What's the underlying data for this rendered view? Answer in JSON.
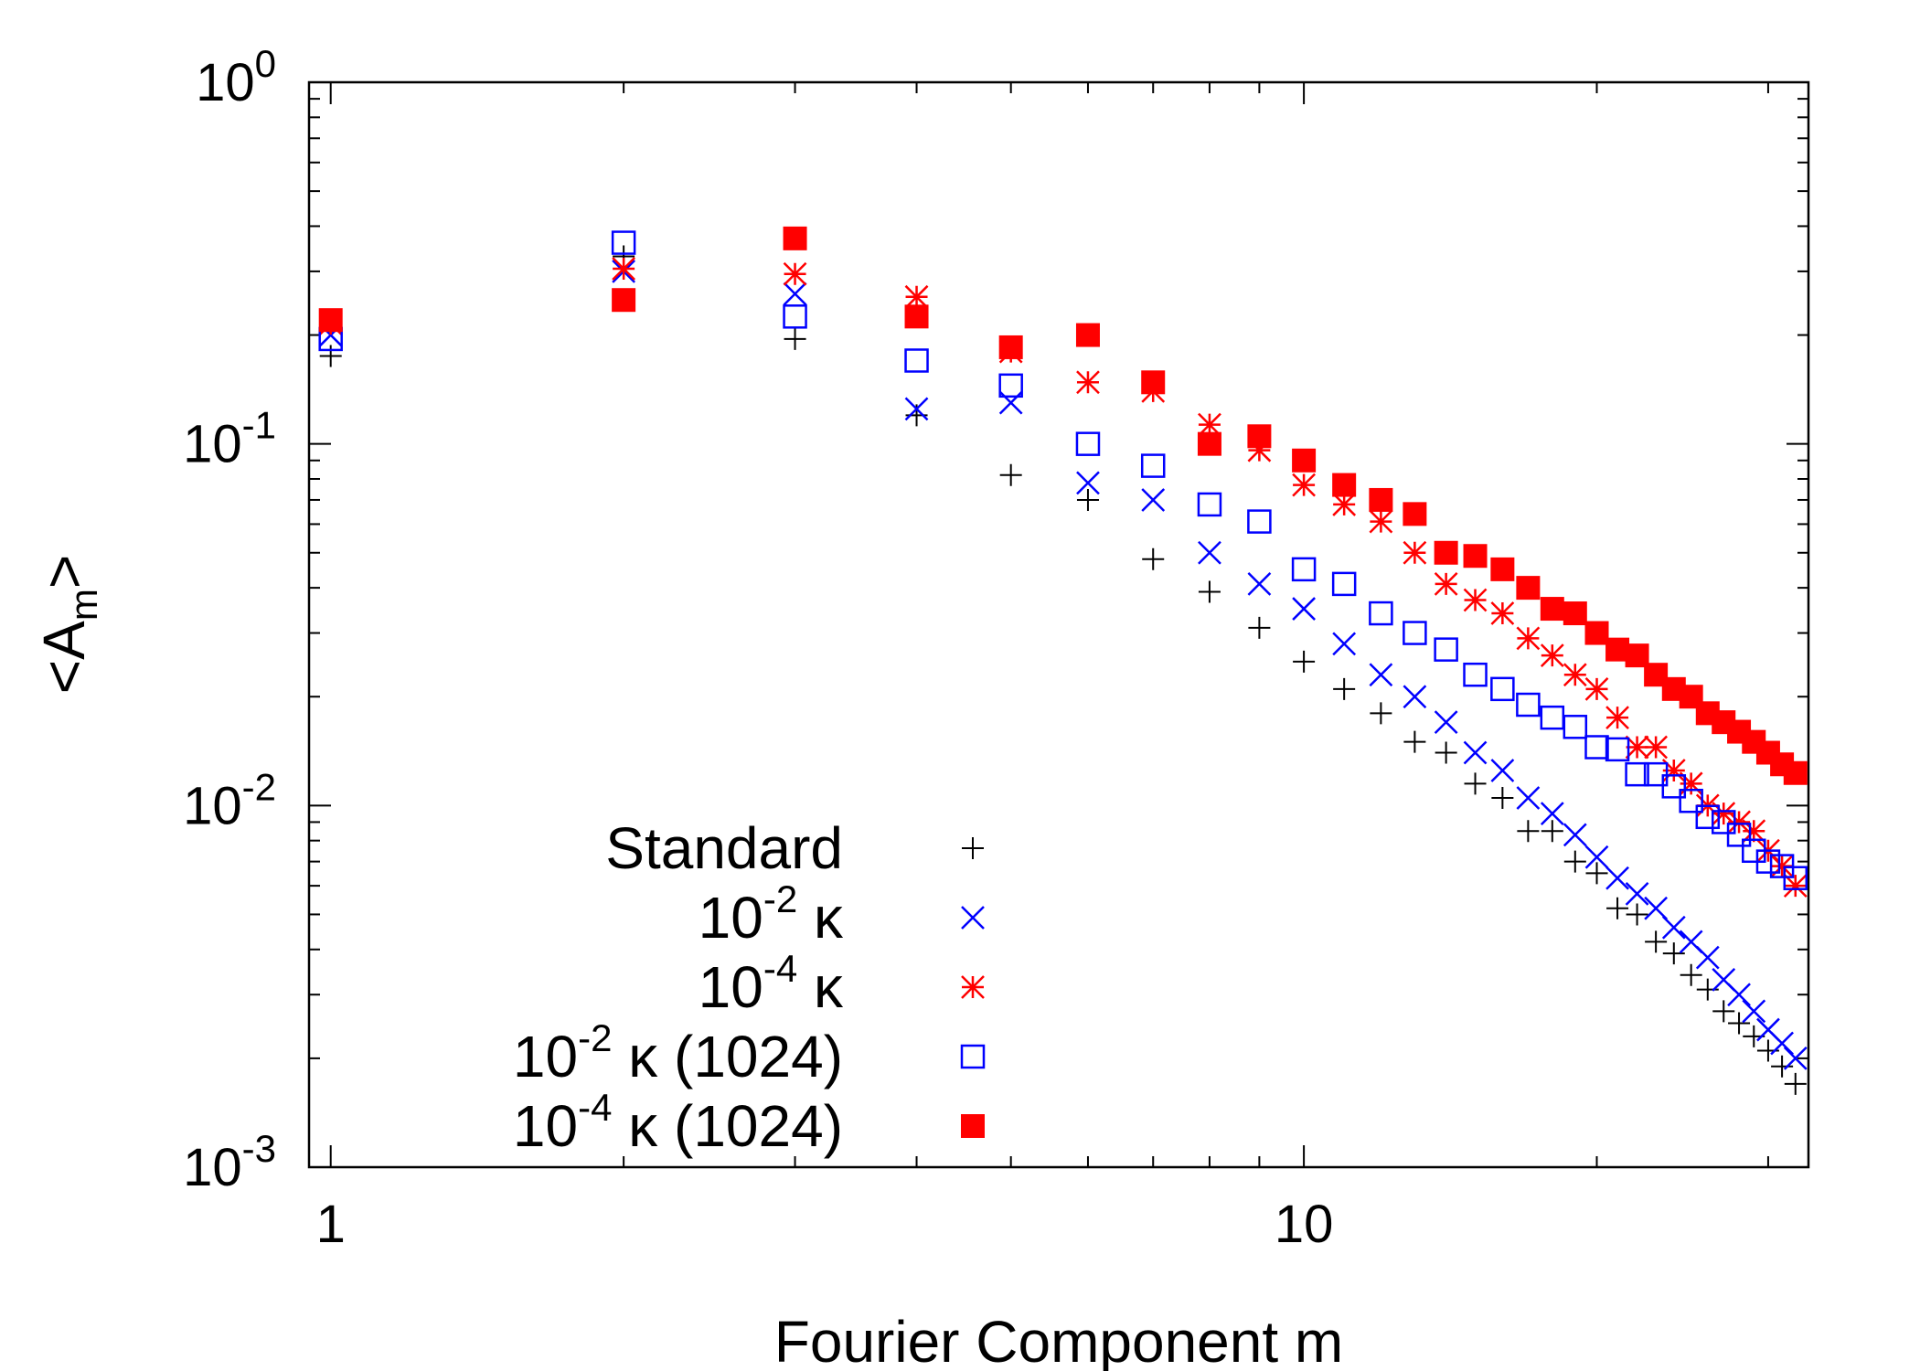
{
  "chart_data": {
    "type": "scatter",
    "title": "",
    "xlabel": "Fourier Component m",
    "ylabel_main": "<A",
    "ylabel_sub": "m",
    "ylabel_end": ">",
    "xscale": "log",
    "yscale": "log",
    "xlim": [
      0.95,
      33
    ],
    "ylim": [
      0.001,
      1
    ],
    "x_ticks": [
      {
        "value": 1,
        "label": "1"
      },
      {
        "value": 10,
        "label": "10"
      }
    ],
    "y_ticks": [
      {
        "value": 0.001,
        "base": "10",
        "exp": "-3"
      },
      {
        "value": 0.01,
        "base": "10",
        "exp": "-2"
      },
      {
        "value": 0.1,
        "base": "10",
        "exp": "-1"
      },
      {
        "value": 1,
        "base": "10",
        "exp": "0"
      }
    ],
    "grid": false,
    "legend_position": "bottom-left",
    "series": [
      {
        "name": "Standard",
        "label_base": "Standard",
        "label_exp": "",
        "label_tail": "",
        "marker": "plus",
        "color": "#000000",
        "x": [
          1,
          2,
          3,
          4,
          5,
          6,
          7,
          8,
          9,
          10,
          11,
          12,
          13,
          14,
          15,
          16,
          17,
          18,
          19,
          20,
          21,
          22,
          23,
          24,
          25,
          26,
          27,
          28,
          29,
          30,
          31,
          32
        ],
        "values": [
          0.175,
          0.33,
          0.195,
          0.12,
          0.082,
          0.07,
          0.048,
          0.039,
          0.031,
          0.025,
          0.021,
          0.018,
          0.015,
          0.014,
          0.0115,
          0.0105,
          0.0085,
          0.0085,
          0.007,
          0.0065,
          0.0052,
          0.005,
          0.0042,
          0.0039,
          0.0034,
          0.0031,
          0.0027,
          0.0025,
          0.0023,
          0.0021,
          0.0019,
          0.0017
        ]
      },
      {
        "name": "10-2 κ",
        "label_base": "10",
        "label_exp": "-2",
        "label_tail": " κ",
        "marker": "cross",
        "color": "#0000ff",
        "x": [
          1,
          2,
          3,
          4,
          5,
          6,
          7,
          8,
          9,
          10,
          11,
          12,
          13,
          14,
          15,
          16,
          17,
          18,
          19,
          20,
          21,
          22,
          23,
          24,
          25,
          26,
          27,
          28,
          29,
          30,
          31,
          32
        ],
        "values": [
          0.2,
          0.3,
          0.26,
          0.125,
          0.13,
          0.078,
          0.07,
          0.05,
          0.041,
          0.035,
          0.028,
          0.023,
          0.02,
          0.017,
          0.014,
          0.0125,
          0.0105,
          0.0095,
          0.0083,
          0.0072,
          0.0063,
          0.0057,
          0.0052,
          0.0046,
          0.0042,
          0.0038,
          0.0033,
          0.003,
          0.0027,
          0.0024,
          0.0022,
          0.002
        ]
      },
      {
        "name": "10-4 κ",
        "label_base": "10",
        "label_exp": "-4",
        "label_tail": " κ",
        "marker": "star",
        "color": "#ff0000",
        "x": [
          1,
          2,
          3,
          4,
          5,
          6,
          7,
          8,
          9,
          10,
          11,
          12,
          13,
          14,
          15,
          16,
          17,
          18,
          19,
          20,
          21,
          22,
          23,
          24,
          25,
          26,
          27,
          28,
          29,
          30,
          31,
          32
        ],
        "values": [
          0.215,
          0.305,
          0.295,
          0.255,
          0.18,
          0.148,
          0.14,
          0.113,
          0.096,
          0.077,
          0.068,
          0.061,
          0.05,
          0.041,
          0.037,
          0.034,
          0.029,
          0.026,
          0.023,
          0.021,
          0.0175,
          0.0145,
          0.0145,
          0.0125,
          0.0115,
          0.01,
          0.0095,
          0.009,
          0.0085,
          0.0075,
          0.0068,
          0.006
        ]
      },
      {
        "name": "10-2 κ (1024)",
        "label_base": "10",
        "label_exp": "-2",
        "label_tail": " κ (1024)",
        "marker": "open-square",
        "color": "#0000ff",
        "x": [
          1,
          2,
          3,
          4,
          5,
          6,
          7,
          8,
          9,
          10,
          11,
          12,
          13,
          14,
          15,
          16,
          17,
          18,
          19,
          20,
          21,
          22,
          23,
          24,
          25,
          26,
          27,
          28,
          29,
          30,
          31,
          32
        ],
        "values": [
          0.195,
          0.36,
          0.225,
          0.17,
          0.145,
          0.1,
          0.087,
          0.068,
          0.061,
          0.045,
          0.041,
          0.034,
          0.03,
          0.027,
          0.023,
          0.021,
          0.019,
          0.0175,
          0.0165,
          0.0145,
          0.0143,
          0.0122,
          0.0122,
          0.0113,
          0.0103,
          0.0093,
          0.009,
          0.0083,
          0.0075,
          0.007,
          0.0068,
          0.0063
        ]
      },
      {
        "name": "10-4 κ (1024)",
        "label_base": "10",
        "label_exp": "-4",
        "label_tail": " κ (1024)",
        "marker": "filled-square",
        "color": "#ff0000",
        "x": [
          1,
          2,
          3,
          4,
          5,
          6,
          7,
          8,
          9,
          10,
          11,
          12,
          13,
          14,
          15,
          16,
          17,
          18,
          19,
          20,
          21,
          22,
          23,
          24,
          25,
          26,
          27,
          28,
          29,
          30,
          31,
          32
        ],
        "values": [
          0.22,
          0.25,
          0.37,
          0.225,
          0.185,
          0.2,
          0.148,
          0.1,
          0.105,
          0.09,
          0.077,
          0.07,
          0.064,
          0.05,
          0.049,
          0.045,
          0.04,
          0.035,
          0.034,
          0.03,
          0.027,
          0.026,
          0.023,
          0.021,
          0.02,
          0.018,
          0.017,
          0.016,
          0.015,
          0.014,
          0.013,
          0.0123
        ]
      }
    ]
  }
}
